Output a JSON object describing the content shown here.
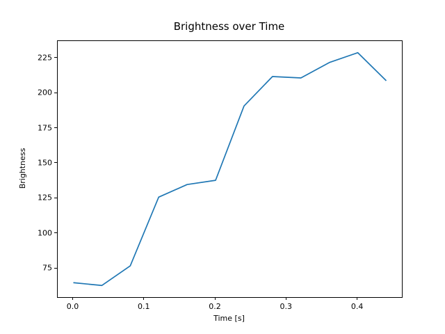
{
  "figure": {
    "background_color": "#ffffff",
    "text_color": "#000000",
    "spine_color": "#000000"
  },
  "chart_data": {
    "type": "line",
    "title": "Brightness over Time",
    "xlabel": "Time [s]",
    "ylabel": "Brightness",
    "x": [
      0.0,
      0.04,
      0.08,
      0.12,
      0.16,
      0.2,
      0.24,
      0.28,
      0.32,
      0.36,
      0.4,
      0.44
    ],
    "values": [
      65,
      63,
      77,
      126,
      135,
      138,
      191,
      212,
      211,
      222,
      229,
      209
    ],
    "series": [
      {
        "name": "brightness",
        "color": "#1f77b4",
        "values": [
          65,
          63,
          77,
          126,
          135,
          138,
          191,
          212,
          211,
          222,
          229,
          209
        ]
      }
    ],
    "xlim": [
      -0.022,
      0.462
    ],
    "ylim": [
      54.7,
      237.3
    ],
    "xticks": {
      "values": [
        0.0,
        0.1,
        0.2,
        0.3,
        0.4
      ],
      "labels": [
        "0.0",
        "0.1",
        "0.2",
        "0.3",
        "0.4"
      ]
    },
    "yticks": {
      "values": [
        75,
        100,
        125,
        150,
        175,
        200,
        225
      ],
      "labels": [
        "75",
        "100",
        "125",
        "150",
        "175",
        "200",
        "225"
      ]
    },
    "grid": false,
    "legend": null,
    "line_color": "#1f77b4",
    "line_width": 1.7
  }
}
